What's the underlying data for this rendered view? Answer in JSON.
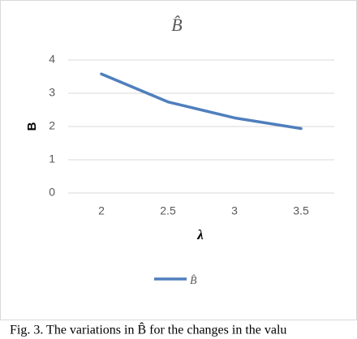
{
  "chart_data": {
    "type": "line",
    "title": "B̂",
    "y_label": "B",
    "x_label": "λ",
    "categories": [
      "2",
      "2.5",
      "3",
      "3.5"
    ],
    "series": [
      {
        "name": "B̂",
        "color": "#4f7fbd",
        "values": [
          3.58,
          2.74,
          2.26,
          1.94
        ]
      }
    ],
    "ylim": [
      0,
      4
    ],
    "yticks": [
      0,
      1,
      2,
      3,
      4
    ],
    "grid": true,
    "legend": "bottom"
  },
  "caption": "Fig. 3. The variations in B̂ for the changes in the valu"
}
